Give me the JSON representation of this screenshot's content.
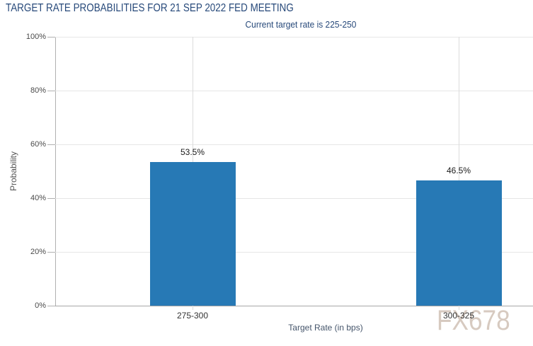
{
  "header": {
    "title": "TARGET RATE PROBABILITIES FOR 21 SEP 2022 FED MEETING",
    "subtitle": "Current target rate is 225-250"
  },
  "watermark": {
    "text": "FX678"
  },
  "chart_data": {
    "type": "bar",
    "title": "TARGET RATE PROBABILITIES FOR 21 SEP 2022 FED MEETING",
    "subtitle": "Current target rate is 225-250",
    "categories": [
      "275-300",
      "300-325"
    ],
    "values": [
      53.5,
      46.5
    ],
    "value_labels": [
      "53.5%",
      "46.5%"
    ],
    "xlabel": "Target Rate (in bps)",
    "ylabel": "Probability",
    "ylim": [
      0,
      100
    ],
    "yticks": [
      0,
      20,
      40,
      60,
      80,
      100
    ],
    "ytick_labels": [
      "0%",
      "20%",
      "40%",
      "60%",
      "80%",
      "100%"
    ],
    "grid": true,
    "legend": false,
    "bar_color": "#2779b5"
  },
  "colors": {
    "title_text": "#27497a",
    "bar": "#2779b5",
    "grid_horizontal": "#e6e6e6",
    "grid_vertical": "#dcdcdc",
    "axis": "#a6a6a6",
    "watermark": "#d5c8bd"
  }
}
